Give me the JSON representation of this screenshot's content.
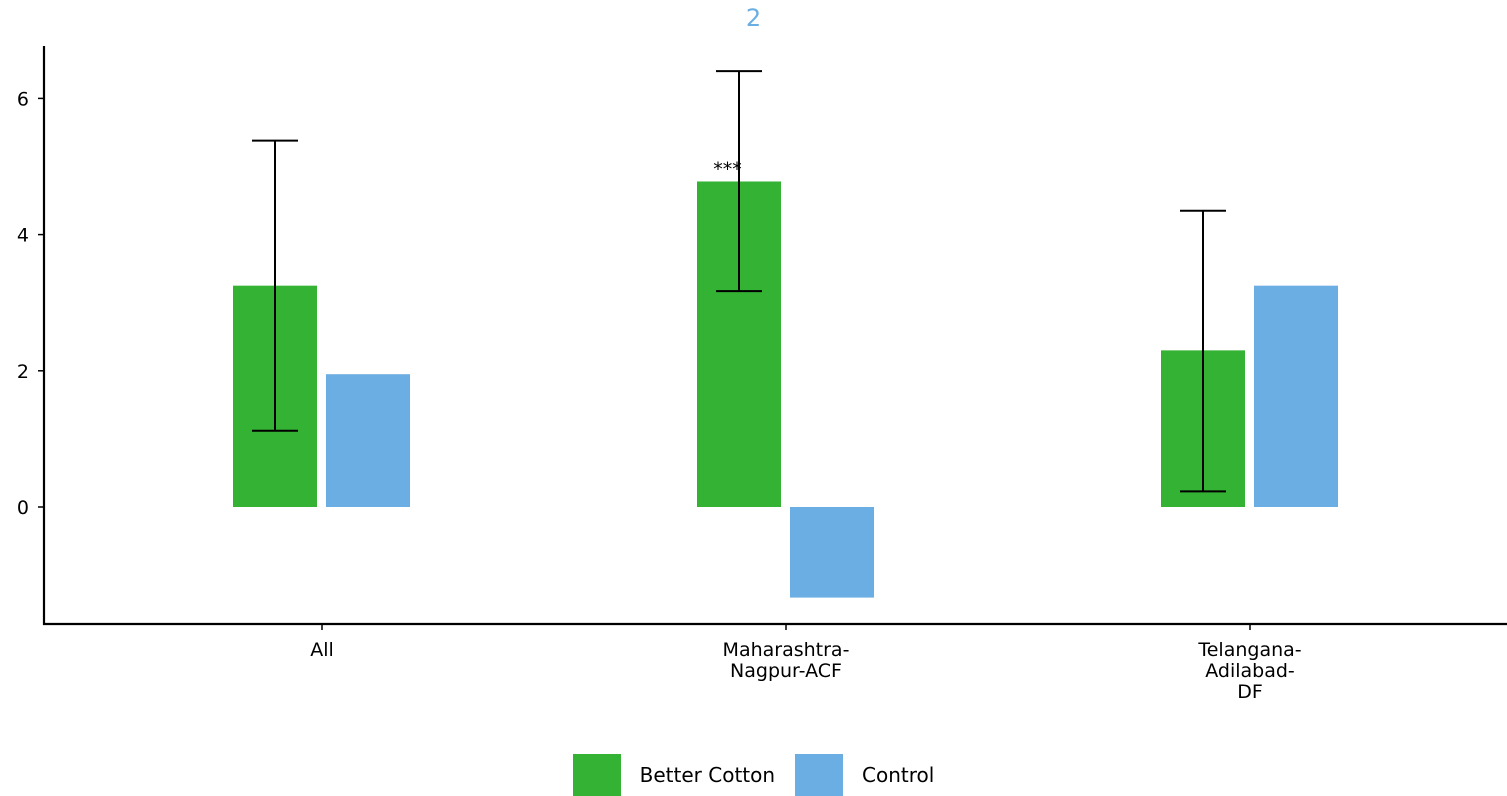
{
  "chart_data": {
    "type": "bar",
    "title": "2",
    "title_color": "#6aaee3",
    "categories": [
      "All",
      "Maharashtra-\nNagpur-ACF",
      "Telangana-\nAdilabad-\nDF"
    ],
    "series": [
      {
        "name": "Better Cotton",
        "color": "#33b233",
        "values": [
          3.25,
          4.78,
          2.3
        ],
        "error_low": [
          1.12,
          3.17,
          0.23
        ],
        "error_high": [
          5.38,
          6.4,
          4.35
        ]
      },
      {
        "name": "Control",
        "color": "#6aaee3",
        "values": [
          1.95,
          -1.33,
          3.25
        ]
      }
    ],
    "annotations": [
      {
        "category_index": 1,
        "series_index": 0,
        "text": "***"
      }
    ],
    "yticks": [
      0,
      2,
      4,
      6
    ],
    "ylim": [
      -1.7,
      6.75
    ],
    "xlabel": "",
    "ylabel": "",
    "grid": false,
    "legend_position": "bottom"
  }
}
